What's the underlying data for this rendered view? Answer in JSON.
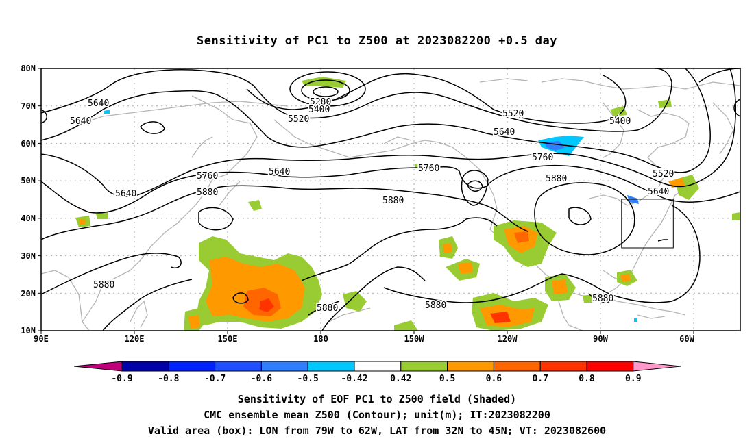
{
  "title": "Sensitivity of PC1 to Z500 at 2023082200 +0.5 day",
  "lat_labels": [
    "80N",
    "70N",
    "60N",
    "50N",
    "40N",
    "30N",
    "20N",
    "10N"
  ],
  "lon_labels": [
    "90E",
    "120E",
    "150E",
    "180",
    "150W",
    "120W",
    "90W",
    "60W"
  ],
  "contour_labels": [
    {
      "text": "5640"
    },
    {
      "text": "5640"
    },
    {
      "text": "5640"
    },
    {
      "text": "5640"
    },
    {
      "text": "5280"
    },
    {
      "text": "5400"
    },
    {
      "text": "5520"
    },
    {
      "text": "5520"
    },
    {
      "text": "5640"
    },
    {
      "text": "5400"
    },
    {
      "text": "5760"
    },
    {
      "text": "5760"
    },
    {
      "text": "5760"
    },
    {
      "text": "5880"
    },
    {
      "text": "5880"
    },
    {
      "text": "5880"
    },
    {
      "text": "5520"
    },
    {
      "text": "5640"
    },
    {
      "text": "5880"
    },
    {
      "text": "5880"
    },
    {
      "text": "5880"
    },
    {
      "text": "5880"
    }
  ],
  "colorbar": {
    "colors": [
      "#c0007a",
      "#0000a8",
      "#0022ff",
      "#1f4fff",
      "#2f7fff",
      "#00c8ff",
      "#ffffff",
      "#99cc33",
      "#ff9900",
      "#ff6600",
      "#ff3300",
      "#ff0000",
      "#ff99cc"
    ],
    "labels": [
      "-0.9",
      "-0.8",
      "-0.7",
      "-0.6",
      "-0.5",
      "-0.42",
      "0.42",
      "0.5",
      "0.6",
      "0.7",
      "0.8",
      "0.9"
    ]
  },
  "valid_box": {
    "lon_west": "79W",
    "lon_east": "62W",
    "lat_south": "32N",
    "lat_north": "45N"
  },
  "footer": {
    "line1": "Sensitivity of EOF PC1 to Z500 field (Shaded)",
    "line2": "CMC ensemble mean Z500 (Contour); unit(m); IT:2023082200",
    "line3": "Valid area (box): LON from 79W to 62W, LAT from 32N to 45N; VT: 2023082600"
  }
}
